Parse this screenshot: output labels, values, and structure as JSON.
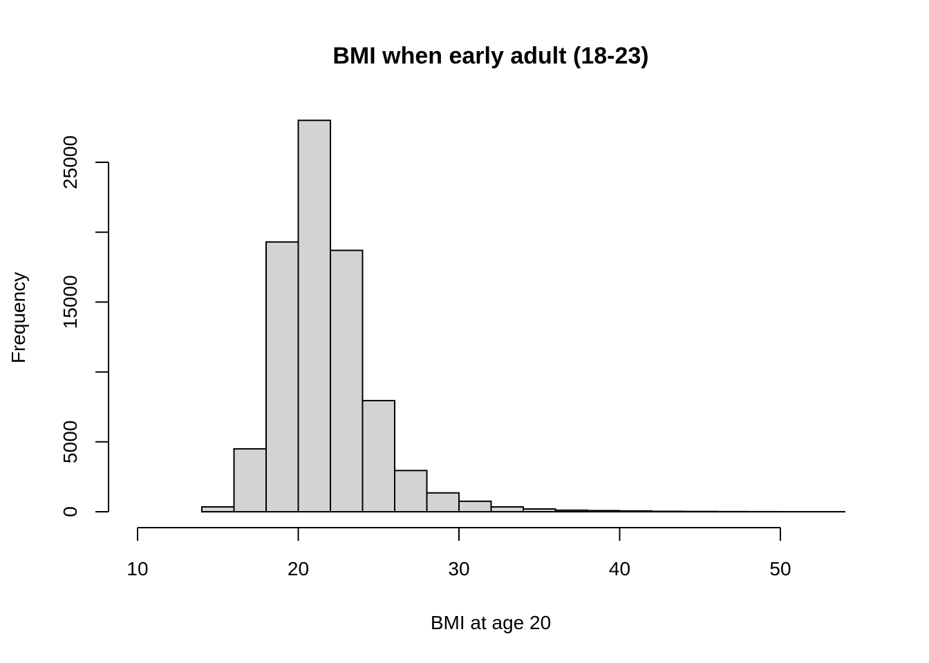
{
  "chart_data": {
    "type": "bar",
    "title": "BMI when early adult (18-23)",
    "xlabel": "BMI at age 20",
    "ylabel": "Frequency",
    "bin_edges": [
      10,
      12,
      14,
      16,
      18,
      20,
      22,
      24,
      26,
      28,
      30,
      32,
      34,
      36,
      38,
      40,
      42,
      44,
      46,
      48,
      50,
      52,
      54
    ],
    "values": [
      0,
      0,
      350,
      4500,
      19300,
      28000,
      18700,
      7950,
      2950,
      1350,
      750,
      350,
      200,
      110,
      80,
      60,
      30,
      20,
      10,
      5,
      3,
      2
    ],
    "xlim": [
      10,
      54
    ],
    "ylim": [
      0,
      28000
    ],
    "x_ticks": [
      10,
      20,
      30,
      40,
      50
    ],
    "y_ticks": [
      0,
      5000,
      10000,
      15000,
      20000,
      25000
    ],
    "y_tick_labels": [
      "0",
      "5000",
      "",
      "15000",
      "",
      "25000"
    ],
    "grid": false,
    "colors": {
      "bar_fill": "#d3d3d3",
      "bar_stroke": "#000000"
    }
  }
}
